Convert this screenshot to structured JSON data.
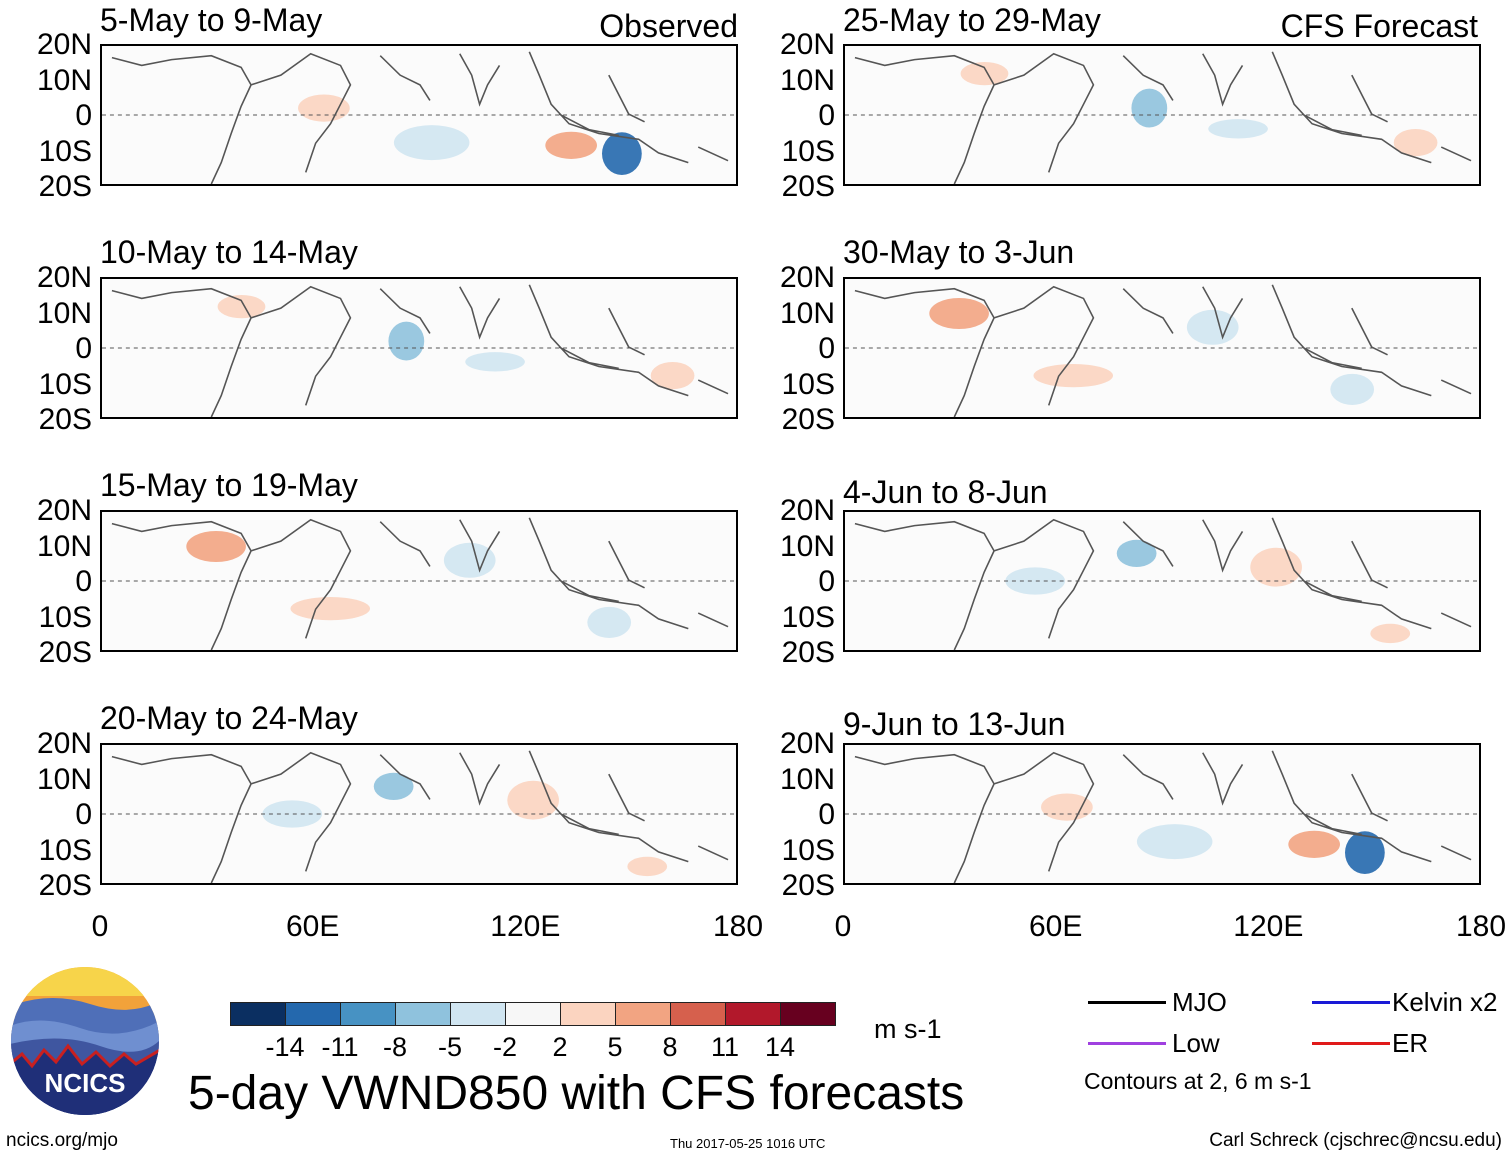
{
  "panels_left": [
    {
      "period": "5-May to 9-May",
      "tag": "Observed"
    },
    {
      "period": "10-May to 14-May",
      "tag": ""
    },
    {
      "period": "15-May to 19-May",
      "tag": ""
    },
    {
      "period": "20-May to 24-May",
      "tag": ""
    }
  ],
  "panels_right": [
    {
      "period": "25-May to 29-May",
      "tag": "CFS Forecast"
    },
    {
      "period": "30-May to 3-Jun",
      "tag": ""
    },
    {
      "period": "4-Jun to 8-Jun",
      "tag": ""
    },
    {
      "period": "9-Jun to 13-Jun",
      "tag": ""
    }
  ],
  "lat_labels": [
    "20N",
    "10N",
    "0",
    "10S",
    "20S"
  ],
  "lon_labels": [
    "0",
    "60E",
    "120E",
    "180"
  ],
  "colorbar": {
    "colors": [
      "#0b2f61",
      "#2468ad",
      "#4792c3",
      "#8fc2dd",
      "#d0e5f1",
      "#f7f7f7",
      "#fbd4c0",
      "#f2a482",
      "#d6604d",
      "#b2182b",
      "#67001f"
    ],
    "labels": [
      "-14",
      "-11",
      "-8",
      "-5",
      "-2",
      "2",
      "5",
      "8",
      "11",
      "14"
    ],
    "units": "m s-1"
  },
  "title": "5-day VWND850 with CFS forecasts",
  "legend": [
    {
      "label": "MJO",
      "color": "#000000"
    },
    {
      "label": "Kelvin x2",
      "color": "#1a1ad6"
    },
    {
      "label": "Low",
      "color": "#a040e0"
    },
    {
      "label": "ER",
      "color": "#e01a1a"
    }
  ],
  "contours_note": "Contours at 2, 6 m s-1",
  "logo_text": "NCICS",
  "footer": {
    "left": "ncics.org/mjo",
    "middle": "Thu 2017-05-25 1016 UTC",
    "right": "Carl Schreck (cjschrec@ncsu.edu)"
  }
}
